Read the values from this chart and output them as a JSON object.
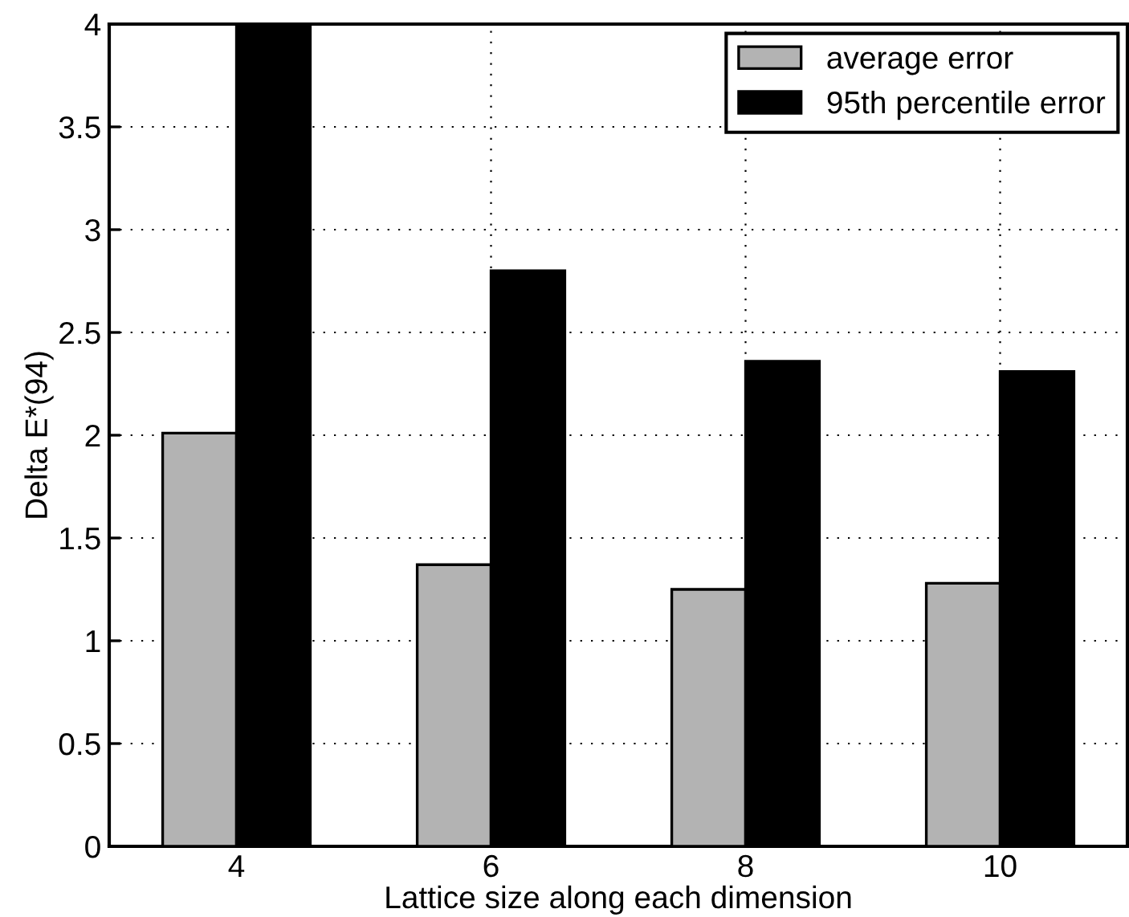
{
  "chart_data": {
    "type": "bar",
    "xlabel": "Lattice size along each dimension",
    "ylabel": "Delta E*(94)",
    "categories": [
      "4",
      "6",
      "8",
      "10"
    ],
    "series": [
      {
        "name": "average error",
        "color": "#b3b3b3",
        "values": [
          2.01,
          1.37,
          1.25,
          1.28
        ]
      },
      {
        "name": "95th percentile error",
        "color": "#000000",
        "values": [
          4.0,
          2.8,
          2.36,
          2.31
        ]
      }
    ],
    "ylim": [
      0,
      4
    ],
    "yticks": [
      0,
      0.5,
      1,
      1.5,
      2,
      2.5,
      3,
      3.5,
      4
    ],
    "grid": true,
    "legend": "top right"
  }
}
